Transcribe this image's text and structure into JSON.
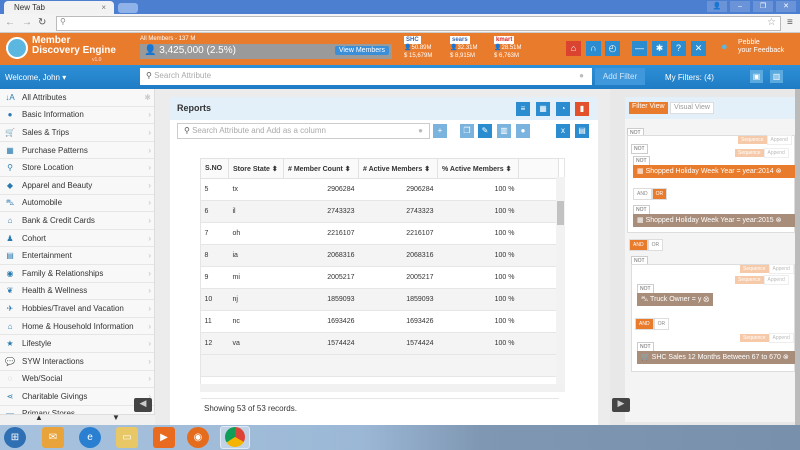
{
  "browser": {
    "tab_title": "New Tab",
    "tab_close": "×",
    "url": "",
    "window_controls": [
      "user",
      "minimize",
      "restore",
      "close"
    ]
  },
  "header": {
    "app_title_line1": "Member",
    "app_title_line2": "Discovery Engine",
    "version": "v1.0",
    "all_members": "All Members - 137 M",
    "member_count": "3,425,000 (2.5%)",
    "view_members": "View Members",
    "brands": [
      {
        "name": "SHC",
        "members": "50.89M",
        "sales": "$ 15,679M"
      },
      {
        "name": "sears",
        "members": "32.31M",
        "sales": "$ 8,915M"
      },
      {
        "name": "kmart",
        "members": "28.51M",
        "sales": "$ 6,763M"
      }
    ],
    "icons": [
      "home-icon",
      "binoculars-icon",
      "clock-icon",
      "minus-icon",
      "gear-icon",
      "help-icon",
      "expand-icon"
    ],
    "feedback_line1": "Pebble",
    "feedback_line2": "your Feedback",
    "accent": "#e97b2c"
  },
  "toolbar": {
    "welcome": "Welcome, John ▾",
    "search_placeholder": "Search Attribute",
    "add_filter": "Add Filter",
    "my_filters": "My Filters: (4)"
  },
  "sidebar": {
    "items": [
      {
        "label": "All Attributes",
        "icon": "sort-az-icon"
      },
      {
        "label": "Basic Information",
        "icon": "user-icon"
      },
      {
        "label": "Sales & Trips",
        "icon": "cart-icon"
      },
      {
        "label": "Purchase Patterns",
        "icon": "grid-icon"
      },
      {
        "label": "Store Location",
        "icon": "map-pin-icon"
      },
      {
        "label": "Apparel and Beauty",
        "icon": "tag-icon"
      },
      {
        "label": "Automobile",
        "icon": "car-icon"
      },
      {
        "label": "Bank & Credit Cards",
        "icon": "bank-icon"
      },
      {
        "label": "Cohort",
        "icon": "group-icon"
      },
      {
        "label": "Entertainment",
        "icon": "film-icon"
      },
      {
        "label": "Family & Relationships",
        "icon": "family-icon"
      },
      {
        "label": "Health & Wellness",
        "icon": "leaf-icon"
      },
      {
        "label": "Hobbies/Travel and Vacation",
        "icon": "plane-icon"
      },
      {
        "label": "Home & Household Information",
        "icon": "home-icon"
      },
      {
        "label": "Lifestyle",
        "icon": "star-icon"
      },
      {
        "label": "SYW Interactions",
        "icon": "chat-icon"
      },
      {
        "label": "Web/Social",
        "icon": "globe-icon"
      },
      {
        "label": "Charitable Givings",
        "icon": "share-icon"
      },
      {
        "label": "Primary Stores",
        "icon": "store-icon"
      }
    ]
  },
  "reports": {
    "title": "Reports",
    "column_search_placeholder": "Search Attribute and Add as a column",
    "columns": [
      "S.NO",
      "Store State",
      "# Member Count",
      "# Active Members",
      "% Active Members"
    ],
    "rows": [
      [
        "5",
        "tx",
        "2906284",
        "2906284",
        "100 %"
      ],
      [
        "6",
        "il",
        "2743323",
        "2743323",
        "100 %"
      ],
      [
        "7",
        "oh",
        "2216107",
        "2216107",
        "100 %"
      ],
      [
        "8",
        "ia",
        "2068316",
        "2068316",
        "100 %"
      ],
      [
        "9",
        "mi",
        "2005217",
        "2005217",
        "100 %"
      ],
      [
        "10",
        "nj",
        "1859093",
        "1859093",
        "100 %"
      ],
      [
        "11",
        "nc",
        "1693426",
        "1693426",
        "100 %"
      ],
      [
        "12",
        "va",
        "1574424",
        "1574424",
        "100 %"
      ]
    ],
    "showing": "Showing 53 of 53 records."
  },
  "filters": {
    "filter_view": "Filter View",
    "visual_view": "Visual View",
    "not": "NOT",
    "and": "AND",
    "or": "OR",
    "sequence": "Sequence",
    "append": "Append",
    "chips": [
      "Shopped Holiday Week Year = year:2014",
      "Shopped Holiday Week Year = year:2015",
      "Truck Owner = y",
      "SHC Sales 12 Months Between 67 to 670"
    ]
  }
}
